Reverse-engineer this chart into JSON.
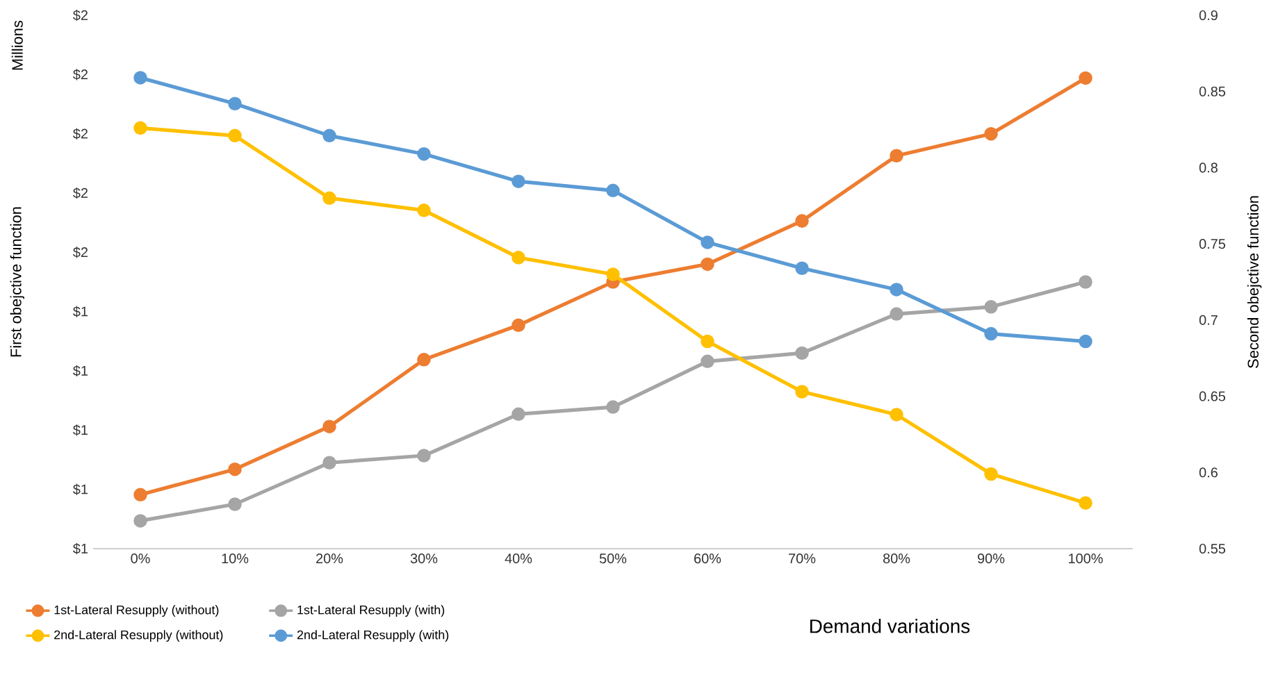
{
  "chart_data": {
    "type": "line",
    "xlabel": "Demand variations",
    "ylabel": "First obejctive function",
    "y2label": "Second obejctive function",
    "annotations": [
      "Millions"
    ],
    "categories": [
      "0%",
      "10%",
      "20%",
      "30%",
      "40%",
      "50%",
      "60%",
      "70%",
      "80%",
      "90%",
      "100%"
    ],
    "ylim": [
      1.0,
      1.9
    ],
    "yticks": [
      {
        "value": 1.0,
        "label": "$1"
      },
      {
        "value": 1.1,
        "label": "$1"
      },
      {
        "value": 1.2,
        "label": "$1"
      },
      {
        "value": 1.3,
        "label": "$1"
      },
      {
        "value": 1.4,
        "label": "$1"
      },
      {
        "value": 1.5,
        "label": "$2"
      },
      {
        "value": 1.6,
        "label": "$2"
      },
      {
        "value": 1.7,
        "label": "$2"
      },
      {
        "value": 1.8,
        "label": "$2"
      },
      {
        "value": 1.9,
        "label": "$2"
      }
    ],
    "y2lim": [
      0.55,
      0.9
    ],
    "y2ticks": [
      0.55,
      0.6,
      0.65,
      0.7,
      0.75,
      0.8,
      0.85,
      0.9
    ],
    "series": [
      {
        "name": "1st-Lateral Resupply (without)",
        "color": "#ed7d31",
        "values": [
          1.091,
          1.134,
          1.206,
          1.319,
          1.377,
          1.45,
          1.48,
          1.553,
          1.663,
          1.7,
          1.794
        ]
      },
      {
        "name": "1st-Lateral Resupply (with)",
        "color": "#a5a5a5",
        "values": [
          1.047,
          1.075,
          1.145,
          1.157,
          1.227,
          1.239,
          1.316,
          1.33,
          1.396,
          1.408,
          1.45
        ]
      },
      {
        "name": "2nd-Lateral Resupply (without)",
        "color": "#ffc000",
        "axis": "y2",
        "values": [
          0.826,
          0.821,
          0.78,
          0.772,
          0.741,
          0.73,
          0.686,
          0.653,
          0.638,
          0.599,
          0.58
        ]
      },
      {
        "name": "2nd-Lateral Resupply (with)",
        "color": "#5b9bd5",
        "axis": "y2",
        "values": [
          0.859,
          0.842,
          0.821,
          0.809,
          0.791,
          0.785,
          0.751,
          0.734,
          0.72,
          0.691,
          0.686
        ]
      }
    ],
    "legend": "bottom",
    "marker": "circle",
    "line_style": "solid",
    "grid": false
  }
}
